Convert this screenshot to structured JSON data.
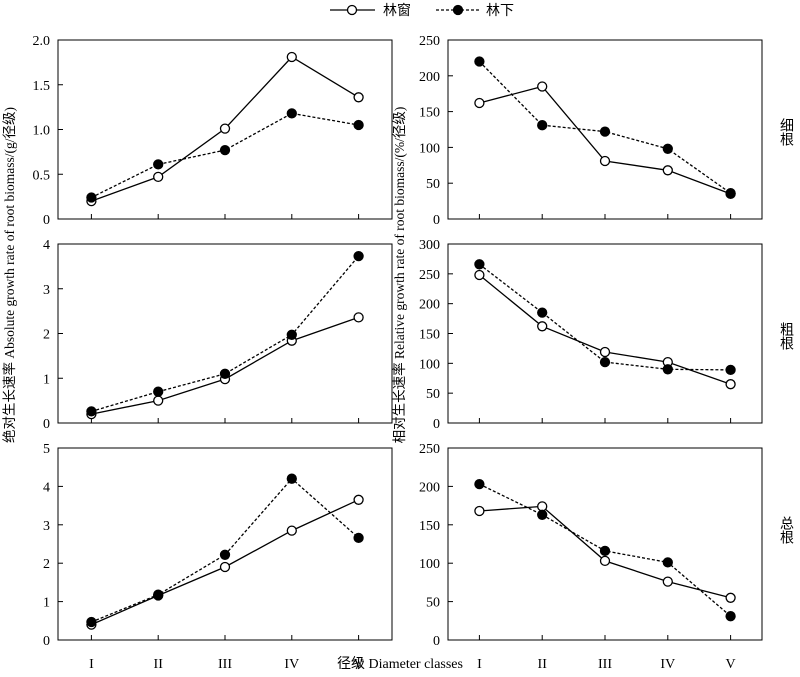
{
  "figure": {
    "legend": [
      {
        "label": "林窗",
        "marker": "open-circle",
        "line": "solid"
      },
      {
        "label": "林下",
        "marker": "filled-circle",
        "line": "dashed"
      }
    ],
    "xlabel": "径级 Diameter classes",
    "ylabel_left": "绝对生长速率 Absolute growth rate of  root biomass/(g/径级)",
    "ylabel_right": "相对生长速率 Relative growth rate of root biomass/(%/径级)",
    "row_labels": [
      "细根",
      "粗根",
      "总根"
    ]
  },
  "chart_data": [
    {
      "type": "line",
      "row": 0,
      "col": 0,
      "categories": [
        "I",
        "II",
        "III",
        "IV",
        "V"
      ],
      "ylim": [
        0,
        2.0
      ],
      "yticks": [
        "0",
        "0.5",
        "1.0",
        "1.5",
        "2.0"
      ],
      "yticks_val": [
        0,
        0.5,
        1.0,
        1.5,
        2.0
      ],
      "series": [
        {
          "name": "林窗",
          "values": [
            0.2,
            0.47,
            1.01,
            1.81,
            1.36
          ]
        },
        {
          "name": "林下",
          "values": [
            0.24,
            0.61,
            0.77,
            1.18,
            1.05
          ]
        }
      ]
    },
    {
      "type": "line",
      "row": 0,
      "col": 1,
      "categories": [
        "I",
        "II",
        "III",
        "IV",
        "V"
      ],
      "ylim": [
        0,
        250
      ],
      "yticks": [
        "0",
        "50",
        "100",
        "150",
        "200",
        "250"
      ],
      "yticks_val": [
        0,
        50,
        100,
        150,
        200,
        250
      ],
      "series": [
        {
          "name": "林窗",
          "values": [
            162,
            185,
            81,
            68,
            35
          ]
        },
        {
          "name": "林下",
          "values": [
            220,
            131,
            122,
            98,
            36
          ]
        }
      ]
    },
    {
      "type": "line",
      "row": 1,
      "col": 0,
      "categories": [
        "I",
        "II",
        "III",
        "IV",
        "V"
      ],
      "ylim": [
        0,
        4
      ],
      "yticks": [
        "0",
        "1",
        "2",
        "3",
        "4"
      ],
      "yticks_val": [
        0,
        1,
        2,
        3,
        4
      ],
      "series": [
        {
          "name": "林窗",
          "values": [
            0.2,
            0.5,
            0.98,
            1.84,
            2.36
          ]
        },
        {
          "name": "林下",
          "values": [
            0.26,
            0.7,
            1.1,
            1.97,
            3.73
          ]
        }
      ]
    },
    {
      "type": "line",
      "row": 1,
      "col": 1,
      "categories": [
        "I",
        "II",
        "III",
        "IV",
        "V"
      ],
      "ylim": [
        0,
        300
      ],
      "yticks": [
        "0",
        "50",
        "100",
        "150",
        "200",
        "250",
        "300"
      ],
      "yticks_val": [
        0,
        50,
        100,
        150,
        200,
        250,
        300
      ],
      "series": [
        {
          "name": "林窗",
          "values": [
            248,
            162,
            119,
            102,
            65
          ]
        },
        {
          "name": "林下",
          "values": [
            266,
            185,
            102,
            90,
            89
          ]
        }
      ]
    },
    {
      "type": "line",
      "row": 2,
      "col": 0,
      "categories": [
        "I",
        "II",
        "III",
        "IV",
        "V"
      ],
      "ylim": [
        0,
        5
      ],
      "yticks": [
        "0",
        "1",
        "2",
        "3",
        "4",
        "5"
      ],
      "yticks_val": [
        0,
        1,
        2,
        3,
        4,
        5
      ],
      "series": [
        {
          "name": "林窗",
          "values": [
            0.4,
            1.16,
            1.9,
            2.85,
            3.65
          ]
        },
        {
          "name": "林下",
          "values": [
            0.47,
            1.18,
            2.22,
            4.2,
            2.66
          ]
        }
      ]
    },
    {
      "type": "line",
      "row": 2,
      "col": 1,
      "categories": [
        "I",
        "II",
        "III",
        "IV",
        "V"
      ],
      "ylim": [
        0,
        250
      ],
      "yticks": [
        "0",
        "50",
        "100",
        "150",
        "200",
        "250"
      ],
      "yticks_val": [
        0,
        50,
        100,
        150,
        200,
        250
      ],
      "series": [
        {
          "name": "林窗",
          "values": [
            168,
            174,
            103,
            76,
            55
          ]
        },
        {
          "name": "林下",
          "values": [
            203,
            163,
            116,
            101,
            31
          ]
        }
      ]
    }
  ]
}
